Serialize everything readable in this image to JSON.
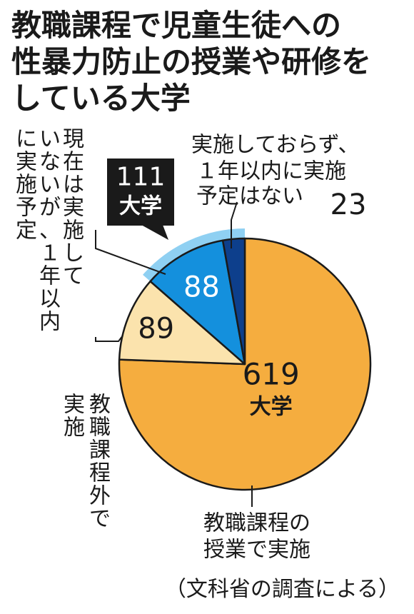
{
  "title_lines": [
    "教職課程で児童生徒への",
    "性暴力防止の授業や研修を",
    "している大学"
  ],
  "source": "（文科省の調査による）",
  "callout": {
    "number": "111",
    "unit": "大学"
  },
  "colors": {
    "orange": "#f5ad3f",
    "cream": "#fbe3ad",
    "blue": "#1490dd",
    "navy": "#0d3f8c",
    "light_blue": "#8fd0f2"
  },
  "chart_data": {
    "type": "pie",
    "title": "教職課程で児童生徒への性暴力防止の授業や研修をしている大学",
    "unit": "大学",
    "slices": [
      {
        "label": "教職課程の授業で実施",
        "value": 619,
        "color": "#f5ad3f"
      },
      {
        "label": "教職課程外で実施",
        "value": 89,
        "color": "#fbe3ad"
      },
      {
        "label": "現在は実施していないが、1年以内に実施予定",
        "value": 88,
        "color": "#1490dd"
      },
      {
        "label": "実施しておらず、1年以内に実施予定はない",
        "value": 23,
        "color": "#0d3f8c"
      }
    ],
    "group_callout": {
      "value": 111,
      "label": "111大学",
      "includes": [
        "現在は実施していないが、1年以内に実施予定",
        "実施しておらず、1年以内に実施予定はない"
      ]
    },
    "data_labels": {
      "s0_number": "619",
      "s0_unit": "大学",
      "s1": "89",
      "s2": "88",
      "s3": "23"
    },
    "category_labels": {
      "s0": [
        "教職課程の",
        "授業で実施"
      ],
      "s1_cols": [
        "教職課程外で",
        "実施"
      ],
      "s2_cols": [
        "現在は実施して",
        "いないが、１年以内",
        "に実施予定"
      ],
      "s3": [
        "実施しておらず、",
        "１年以内に実施",
        "予定はない"
      ]
    }
  }
}
